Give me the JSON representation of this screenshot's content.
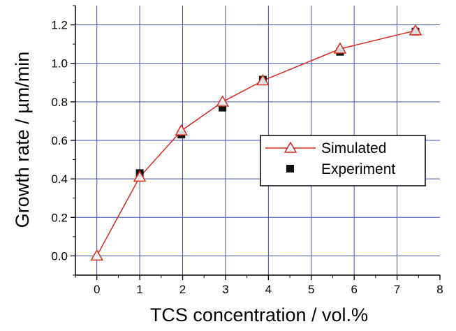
{
  "chart_data": {
    "type": "scatter",
    "title": "",
    "xlabel": "TCS concentration / vol.%",
    "ylabel": "Growth rate / µm/min",
    "xlim": [
      -0.5,
      8
    ],
    "ylim": [
      -0.1,
      1.3
    ],
    "x_ticks": [
      0,
      1,
      2,
      3,
      4,
      5,
      6,
      7,
      8
    ],
    "y_ticks": [
      0.0,
      0.2,
      0.4,
      0.6,
      0.8,
      1.0,
      1.2
    ],
    "x_tick_labels": [
      "0",
      "1",
      "2",
      "3",
      "4",
      "5",
      "6",
      "7",
      "8"
    ],
    "y_tick_labels": [
      "0.0",
      "0.2",
      "0.4",
      "0.6",
      "0.8",
      "1.0",
      "1.2"
    ],
    "grid": true,
    "legend_position": "center-right",
    "series": [
      {
        "name": "Simulated",
        "style": "line-with-open-triangles",
        "color": "#d42a1e",
        "points": [
          [
            0,
            0.0
          ],
          [
            1,
            0.41
          ],
          [
            1.97,
            0.65
          ],
          [
            2.93,
            0.8
          ],
          [
            3.87,
            0.91
          ],
          [
            5.67,
            1.075
          ],
          [
            7.43,
            1.17
          ]
        ]
      },
      {
        "name": "Experiment",
        "style": "filled-squares",
        "color": "#111111",
        "points": [
          [
            1,
            0.43
          ],
          [
            1.97,
            0.63
          ],
          [
            2.93,
            0.77
          ],
          [
            3.87,
            0.915
          ],
          [
            5.67,
            1.06
          ],
          [
            7.43,
            1.165
          ]
        ]
      }
    ],
    "grid_color": "#3f51a8"
  }
}
